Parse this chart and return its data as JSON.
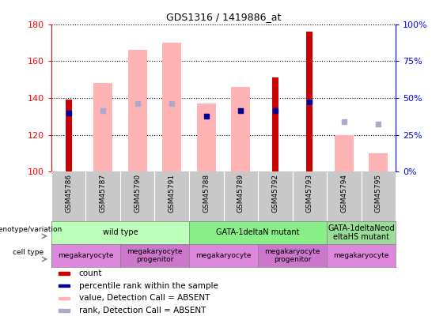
{
  "title": "GDS1316 / 1419886_at",
  "samples": [
    "GSM45786",
    "GSM45787",
    "GSM45790",
    "GSM45791",
    "GSM45788",
    "GSM45789",
    "GSM45792",
    "GSM45793",
    "GSM45794",
    "GSM45795"
  ],
  "ylim_left": [
    100,
    180
  ],
  "ylim_right": [
    0,
    100
  ],
  "yticks_left": [
    100,
    120,
    140,
    160,
    180
  ],
  "yticks_right": [
    0,
    25,
    50,
    75,
    100
  ],
  "count_values": [
    139,
    null,
    null,
    null,
    null,
    null,
    151,
    176,
    null,
    null
  ],
  "rank_values": [
    132,
    null,
    null,
    null,
    130,
    133,
    133,
    138,
    null,
    null
  ],
  "absent_value_bars": [
    null,
    148,
    166,
    170,
    137,
    146,
    null,
    null,
    120,
    110
  ],
  "absent_rank_markers": [
    null,
    133,
    137,
    137,
    null,
    133,
    null,
    138,
    127,
    126
  ],
  "count_color": "#cc0000",
  "rank_color": "#000099",
  "absent_value_color": "#ffb3b3",
  "absent_rank_color": "#aaaacc",
  "genotype_groups": [
    {
      "label": "wild type",
      "cols": [
        0,
        1,
        2,
        3
      ],
      "color": "#bbffbb"
    },
    {
      "label": "GATA-1deltaN mutant",
      "cols": [
        4,
        5,
        6,
        7
      ],
      "color": "#88ee88"
    },
    {
      "label": "GATA-1deltaNeod\neltaHS mutant",
      "cols": [
        8,
        9
      ],
      "color": "#99dd99"
    }
  ],
  "cell_type_groups": [
    {
      "label": "megakaryocyte",
      "cols": [
        0,
        1
      ],
      "color": "#dd88dd"
    },
    {
      "label": "megakaryocyte\nprogenitor",
      "cols": [
        2,
        3
      ],
      "color": "#cc77cc"
    },
    {
      "label": "megakaryocyte",
      "cols": [
        4,
        5
      ],
      "color": "#dd88dd"
    },
    {
      "label": "megakaryocyte\nprogenitor",
      "cols": [
        6,
        7
      ],
      "color": "#cc77cc"
    },
    {
      "label": "megakaryocyte",
      "cols": [
        8,
        9
      ],
      "color": "#dd88dd"
    }
  ],
  "legend_items": [
    {
      "label": "count",
      "color": "#cc0000"
    },
    {
      "label": "percentile rank within the sample",
      "color": "#000099"
    },
    {
      "label": "value, Detection Call = ABSENT",
      "color": "#ffb3b3"
    },
    {
      "label": "rank, Detection Call = ABSENT",
      "color": "#aaaacc"
    }
  ]
}
